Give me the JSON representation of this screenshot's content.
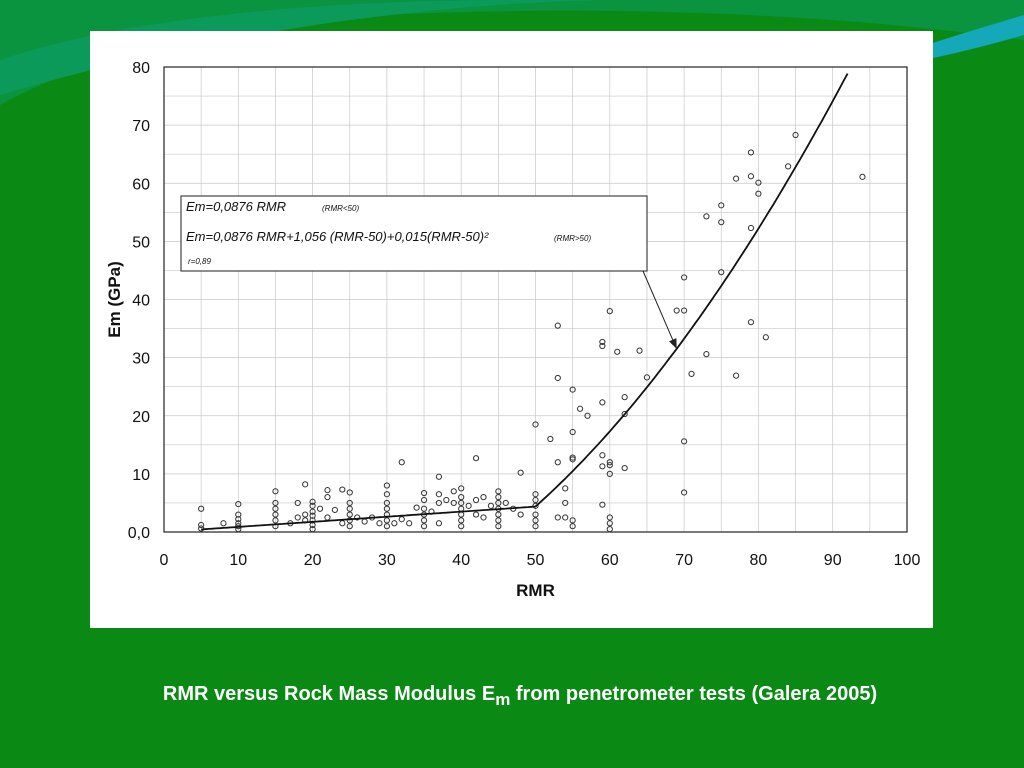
{
  "caption": {
    "prefix": "RMR versus Rock Mass Modulus E",
    "subscript": "m",
    "suffix": " from penetrometer tests (Galera 2005)"
  },
  "colors": {
    "background": "#0a8a14",
    "accent_band_1": "#0c9a5a",
    "accent_band_2": "#14a8b8",
    "panel": "#ffffff",
    "grid": "#c8c8c8",
    "points": "#333333",
    "curve": "#111111"
  },
  "chart_data": {
    "type": "scatter",
    "xlabel": "RMR",
    "ylabel": "Em (GPa)",
    "xlim": [
      0,
      100
    ],
    "ylim": [
      0,
      80
    ],
    "x_ticks": [
      "0",
      "10",
      "20",
      "30",
      "40",
      "50",
      "60",
      "70",
      "80",
      "90",
      "100"
    ],
    "y_ticks": [
      "0,0",
      "10",
      "20",
      "30",
      "40",
      "50",
      "60",
      "70",
      "80"
    ],
    "grid": true,
    "legend_box": {
      "line1": "Em=0,0876 RMR",
      "line1_note": "(RMR<50)",
      "line2": "Em=0,0876 RMR+1,056 (RMR-50)+0,015(RMR-50)²",
      "line2_note": "(RMR>50)",
      "line3": "r=0,89",
      "placement": "upper-left",
      "arrow_to": [
        69,
        31.5
      ]
    },
    "fit_curve": {
      "segments": [
        {
          "range": [
            5,
            50
          ],
          "formula": "0.0876*x"
        },
        {
          "range": [
            50,
            92
          ],
          "formula": "0.0876*x + 1.056*(x-50) + 0.015*(x-50)^2"
        }
      ]
    },
    "points": [
      [
        5,
        4
      ],
      [
        5,
        1.2
      ],
      [
        5,
        0.6
      ],
      [
        8,
        1.5
      ],
      [
        10,
        4.8
      ],
      [
        10,
        3
      ],
      [
        10,
        2.2
      ],
      [
        10,
        1.5
      ],
      [
        10,
        1
      ],
      [
        10,
        0.5
      ],
      [
        15,
        7
      ],
      [
        15,
        5
      ],
      [
        15,
        4
      ],
      [
        15,
        3
      ],
      [
        15,
        2
      ],
      [
        15,
        1
      ],
      [
        17,
        1.5
      ],
      [
        18,
        5
      ],
      [
        18,
        2.5
      ],
      [
        19,
        8.2
      ],
      [
        19,
        3
      ],
      [
        19,
        2
      ],
      [
        20,
        5.2
      ],
      [
        20,
        4.5
      ],
      [
        20,
        3.5
      ],
      [
        20,
        2.8
      ],
      [
        20,
        2
      ],
      [
        20,
        1.2
      ],
      [
        20,
        0.5
      ],
      [
        21,
        4
      ],
      [
        22,
        7.2
      ],
      [
        22,
        6
      ],
      [
        22,
        2.5
      ],
      [
        23,
        3.8
      ],
      [
        24,
        7.3
      ],
      [
        24,
        1.5
      ],
      [
        25,
        6.8
      ],
      [
        25,
        5
      ],
      [
        25,
        4
      ],
      [
        25,
        3
      ],
      [
        25,
        2
      ],
      [
        25,
        1
      ],
      [
        26,
        2.5
      ],
      [
        27,
        1.8
      ],
      [
        28,
        2.5
      ],
      [
        29,
        1.5
      ],
      [
        30,
        8
      ],
      [
        30,
        6.5
      ],
      [
        30,
        5
      ],
      [
        30,
        4
      ],
      [
        30,
        3
      ],
      [
        30,
        2
      ],
      [
        30,
        1
      ],
      [
        31,
        1.5
      ],
      [
        32,
        12
      ],
      [
        32,
        2.2
      ],
      [
        33,
        1.5
      ],
      [
        34,
        4.2
      ],
      [
        35,
        6.7
      ],
      [
        35,
        5.5
      ],
      [
        35,
        4
      ],
      [
        35,
        3
      ],
      [
        35,
        2
      ],
      [
        35,
        1
      ],
      [
        36,
        3.5
      ],
      [
        37,
        9.5
      ],
      [
        37,
        6.5
      ],
      [
        37,
        5
      ],
      [
        37,
        1.5
      ],
      [
        38,
        5.5
      ],
      [
        39,
        7
      ],
      [
        39,
        5
      ],
      [
        40,
        7.5
      ],
      [
        40,
        6
      ],
      [
        40,
        5
      ],
      [
        40,
        4
      ],
      [
        40,
        3
      ],
      [
        40,
        2
      ],
      [
        40,
        1
      ],
      [
        41,
        4.5
      ],
      [
        42,
        12.7
      ],
      [
        42,
        5.5
      ],
      [
        42,
        3
      ],
      [
        43,
        6
      ],
      [
        43,
        2.5
      ],
      [
        44,
        4.5
      ],
      [
        45,
        7
      ],
      [
        45,
        6
      ],
      [
        45,
        5
      ],
      [
        45,
        4
      ],
      [
        45,
        3
      ],
      [
        45,
        2
      ],
      [
        45,
        1
      ],
      [
        46,
        5
      ],
      [
        47,
        4
      ],
      [
        48,
        10.2
      ],
      [
        48,
        3
      ],
      [
        50,
        18.5
      ],
      [
        50,
        6.5
      ],
      [
        50,
        5.5
      ],
      [
        50,
        4.5
      ],
      [
        50,
        3
      ],
      [
        50,
        2
      ],
      [
        50,
        1
      ],
      [
        52,
        16
      ],
      [
        53,
        35.5
      ],
      [
        53,
        26.5
      ],
      [
        53,
        12
      ],
      [
        53,
        2.5
      ],
      [
        54,
        7.5
      ],
      [
        54,
        5
      ],
      [
        54,
        2.5
      ],
      [
        55,
        24.5
      ],
      [
        55,
        17.2
      ],
      [
        55,
        12.8
      ],
      [
        55,
        12.5
      ],
      [
        55,
        2
      ],
      [
        55,
        1
      ],
      [
        56,
        21.2
      ],
      [
        57,
        20
      ],
      [
        59,
        32.7
      ],
      [
        59,
        32
      ],
      [
        59,
        22.3
      ],
      [
        59,
        13.2
      ],
      [
        59,
        11.3
      ],
      [
        59,
        4.7
      ],
      [
        60,
        38
      ],
      [
        60,
        12
      ],
      [
        60,
        11.5
      ],
      [
        60,
        10
      ],
      [
        60,
        2.5
      ],
      [
        60,
        1.5
      ],
      [
        60,
        0.5
      ],
      [
        61,
        31
      ],
      [
        62,
        23.2
      ],
      [
        62,
        20.3
      ],
      [
        62,
        11
      ],
      [
        64,
        31.2
      ],
      [
        65,
        26.6
      ],
      [
        69,
        38.1
      ],
      [
        70,
        43.8
      ],
      [
        70,
        38.1
      ],
      [
        70,
        15.6
      ],
      [
        70,
        6.8
      ],
      [
        71,
        27.2
      ],
      [
        73,
        54.3
      ],
      [
        73,
        30.6
      ],
      [
        75,
        56.2
      ],
      [
        75,
        53.3
      ],
      [
        75,
        44.7
      ],
      [
        77,
        60.8
      ],
      [
        77,
        26.9
      ],
      [
        79,
        65.3
      ],
      [
        79,
        61.2
      ],
      [
        79,
        52.3
      ],
      [
        79,
        36.1
      ],
      [
        80,
        60.1
      ],
      [
        80,
        58.2
      ],
      [
        81,
        33.5
      ],
      [
        84,
        62.9
      ],
      [
        85,
        68.3
      ],
      [
        94,
        61.1
      ]
    ]
  }
}
